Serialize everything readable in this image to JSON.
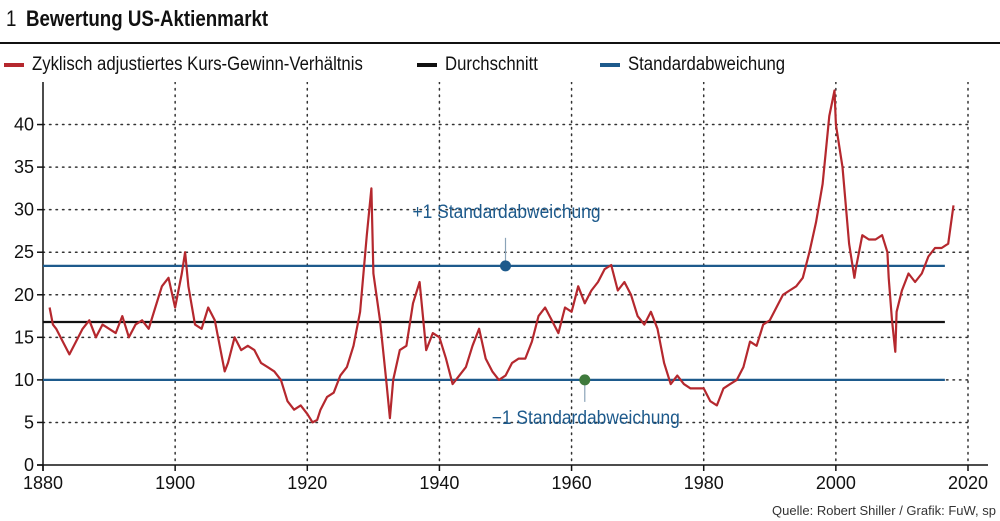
{
  "figure": {
    "number": "1",
    "title": "Bewertung US-Aktienmarkt",
    "source": "Quelle: Robert Shiller / Grafik: FuW, sp"
  },
  "colors": {
    "cape": "#b5282e",
    "mean": "#111111",
    "std": "#1d5a8c",
    "grid": "#333333",
    "axis": "#111111",
    "marker_upper": "#1d5a8c",
    "marker_lower": "#3f7a3c"
  },
  "legend": [
    {
      "label": "Zyklisch adjustiertes Kurs-Gewinn-Verhältnis",
      "color": "#b5282e"
    },
    {
      "label": "Durchschnitt",
      "color": "#111111"
    },
    {
      "label": "Standardabweichung",
      "color": "#1d5a8c"
    }
  ],
  "annotations": [
    {
      "text": "+1 Standardabweichung",
      "x": 1950,
      "y": 23.4,
      "position": "above",
      "marker_color": "#1d5a8c"
    },
    {
      "text": "−1 Standardabweichung",
      "x": 1962,
      "y": 10.0,
      "position": "below",
      "marker_color": "#3f7a3c"
    }
  ],
  "chart_data": {
    "type": "line",
    "title": "Bewertung US-Aktienmarkt",
    "xlabel": "",
    "ylabel": "",
    "xlim": [
      1880,
      2020
    ],
    "ylim": [
      0,
      45
    ],
    "xticks": [
      1880,
      1900,
      1920,
      1940,
      1960,
      1980,
      2000,
      2020
    ],
    "yticks": [
      0,
      5,
      10,
      15,
      20,
      25,
      30,
      35,
      40
    ],
    "grid": true,
    "legend_position": "top",
    "reference_lines": [
      {
        "name": "Durchschnitt",
        "y": 16.8
      },
      {
        "name": "+1 Standardabweichung",
        "y": 23.4
      },
      {
        "name": "−1 Standardabweichung",
        "y": 10.0
      }
    ],
    "series": [
      {
        "name": "Zyklisch adjustiertes Kurs-Gewinn-Verhältnis",
        "x": [
          1881,
          1881.5,
          1882,
          1883,
          1884,
          1885,
          1886,
          1887,
          1888,
          1889,
          1890,
          1891,
          1892,
          1893,
          1894,
          1895,
          1896,
          1897,
          1898,
          1899,
          1900,
          1901,
          1901.5,
          1902,
          1903,
          1904,
          1905,
          1906,
          1907,
          1907.5,
          1908,
          1909,
          1910,
          1911,
          1912,
          1913,
          1914,
          1915,
          1916,
          1917,
          1918,
          1919,
          1920,
          1920.8,
          1921.5,
          1922,
          1923,
          1924,
          1925,
          1926,
          1927,
          1928,
          1929,
          1929.7,
          1930,
          1931,
          1932,
          1932.5,
          1933,
          1934,
          1935,
          1936,
          1937,
          1938,
          1939,
          1940,
          1941,
          1942,
          1943,
          1944,
          1945,
          1946,
          1947,
          1948,
          1949,
          1950,
          1951,
          1952,
          1953,
          1954,
          1955,
          1956,
          1957,
          1958,
          1959,
          1960,
          1961,
          1962,
          1963,
          1964,
          1965,
          1966,
          1967,
          1968,
          1969,
          1970,
          1971,
          1972,
          1973,
          1974,
          1975,
          1976,
          1977,
          1978,
          1979,
          1980,
          1981,
          1982,
          1983,
          1984,
          1985,
          1986,
          1987,
          1988,
          1989,
          1990,
          1991,
          1992,
          1993,
          1994,
          1995,
          1996,
          1997,
          1998,
          1999,
          1999.8,
          2000,
          2001,
          2002,
          2002.8,
          2003,
          2004,
          2005,
          2006,
          2007,
          2007.8,
          2008,
          2008.5,
          2009,
          2009.2,
          2010,
          2011,
          2012,
          2013,
          2014,
          2015,
          2016,
          2017,
          2017.8
        ],
        "values": [
          18.5,
          16.5,
          16.0,
          14.5,
          13.0,
          14.5,
          16.0,
          17.0,
          15.0,
          16.5,
          16.0,
          15.5,
          17.5,
          15.0,
          16.5,
          17.0,
          16.0,
          18.5,
          21.0,
          22.0,
          18.5,
          22.5,
          25.0,
          21.0,
          16.5,
          16.0,
          18.5,
          17.0,
          13.0,
          11.0,
          12.0,
          15.0,
          13.5,
          14.0,
          13.5,
          12.0,
          11.5,
          11.0,
          10.0,
          7.5,
          6.5,
          7.0,
          6.0,
          5.0,
          5.3,
          6.5,
          8.0,
          8.5,
          10.5,
          11.5,
          14.0,
          18.0,
          27.0,
          32.5,
          22.5,
          17.0,
          9.5,
          5.5,
          10.0,
          13.5,
          14.0,
          19.0,
          21.5,
          13.5,
          15.5,
          15.0,
          12.5,
          9.5,
          10.5,
          11.5,
          14.0,
          16.0,
          12.5,
          11.0,
          10.0,
          10.5,
          12.0,
          12.5,
          12.5,
          14.5,
          17.5,
          18.5,
          17.0,
          15.5,
          18.5,
          18.0,
          21.0,
          19.0,
          20.5,
          21.5,
          23.0,
          23.5,
          20.5,
          21.5,
          20.0,
          17.5,
          16.5,
          18.0,
          16.0,
          12.0,
          9.5,
          10.5,
          9.5,
          9.0,
          9.0,
          9.0,
          7.5,
          7.0,
          9.0,
          9.5,
          10.0,
          11.5,
          14.5,
          14.0,
          16.5,
          17.0,
          18.5,
          20.0,
          20.5,
          21.0,
          22.0,
          25.0,
          28.5,
          33.0,
          41.0,
          44.0,
          40.0,
          35.0,
          26.0,
          22.0,
          23.0,
          27.0,
          26.5,
          26.5,
          27.0,
          25.0,
          22.0,
          17.0,
          13.3,
          18.0,
          20.5,
          22.5,
          21.5,
          22.5,
          24.5,
          25.5,
          25.5,
          26.0,
          30.5
        ]
      }
    ]
  }
}
